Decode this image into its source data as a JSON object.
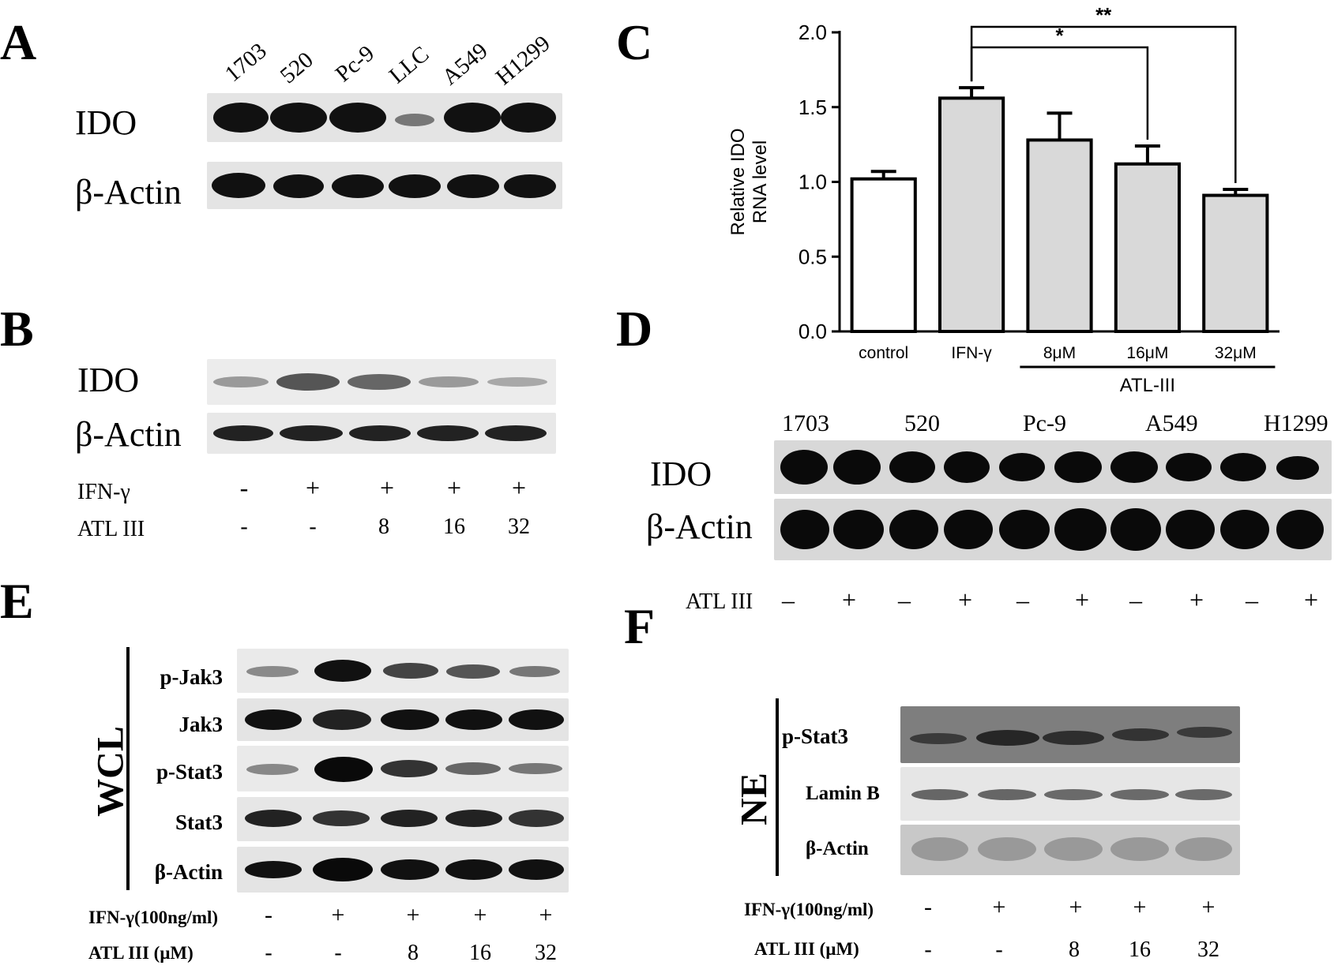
{
  "panels": {
    "A": {
      "label": "A",
      "lanes": [
        "1703",
        "520",
        "Pc-9",
        "LLC",
        "A549",
        "H1299"
      ],
      "rows": [
        "IDO",
        "β-Actin"
      ]
    },
    "B": {
      "label": "B",
      "rows": [
        "IDO",
        "β-Actin"
      ],
      "conditions": [
        {
          "name": "IFN-γ",
          "values": [
            "-",
            "+",
            "+",
            "+",
            "+"
          ]
        },
        {
          "name": "ATL III",
          "values": [
            "-",
            "-",
            "8",
            "16",
            "32"
          ]
        }
      ]
    },
    "C": {
      "label": "C"
    },
    "D": {
      "label": "D",
      "cell_lines": [
        "1703",
        "520",
        "Pc-9",
        "A549",
        "H1299"
      ],
      "rows": [
        "IDO",
        "β-Actin"
      ],
      "condition": {
        "name": "ATL III",
        "values": [
          "–",
          "+",
          "–",
          "+",
          "–",
          "+",
          "–",
          "+",
          "–",
          "+"
        ]
      }
    },
    "E": {
      "label": "E",
      "group": "WCL",
      "rows": [
        "p-Jak3",
        "Jak3",
        "p-Stat3",
        "Stat3",
        "β-Actin"
      ],
      "conditions": [
        {
          "name": "IFN-γ(100ng/ml)",
          "values": [
            "-",
            "+",
            "+",
            "+",
            "+"
          ]
        },
        {
          "name": "ATL III (μM)",
          "values": [
            "-",
            "-",
            "8",
            "16",
            "32"
          ]
        }
      ]
    },
    "F": {
      "label": "F",
      "group": "NE",
      "rows": [
        "p-Stat3",
        "Lamin B",
        "β-Actin"
      ],
      "conditions": [
        {
          "name": "IFN-γ(100ng/ml)",
          "values": [
            "-",
            "+",
            "+",
            "+",
            "+"
          ]
        },
        {
          "name": "ATL III (μM)",
          "values": [
            "-",
            "-",
            "8",
            "16",
            "32"
          ]
        }
      ]
    }
  },
  "chart_data": {
    "type": "bar",
    "categories": [
      "control",
      "IFN-γ",
      "8μM",
      "16μM",
      "32μM"
    ],
    "values": [
      1.02,
      1.56,
      1.28,
      1.12,
      0.91
    ],
    "errors": [
      0.05,
      0.07,
      0.18,
      0.12,
      0.04
    ],
    "ylabel_lines": [
      "Relative IDO",
      "RNA level"
    ],
    "ylim": [
      0,
      2.0
    ],
    "yticks": [
      "0.0",
      "0.5",
      "1.0",
      "1.5",
      "2.0"
    ],
    "group_label": "ATL-III",
    "significance": [
      {
        "from": "IFN-γ",
        "to": "16μM",
        "label": "*"
      },
      {
        "from": "IFN-γ",
        "to": "32μM",
        "label": "**"
      }
    ],
    "colors": {
      "control": "#ffffff",
      "treated": "#d9d9d9",
      "stroke": "#000000"
    }
  }
}
